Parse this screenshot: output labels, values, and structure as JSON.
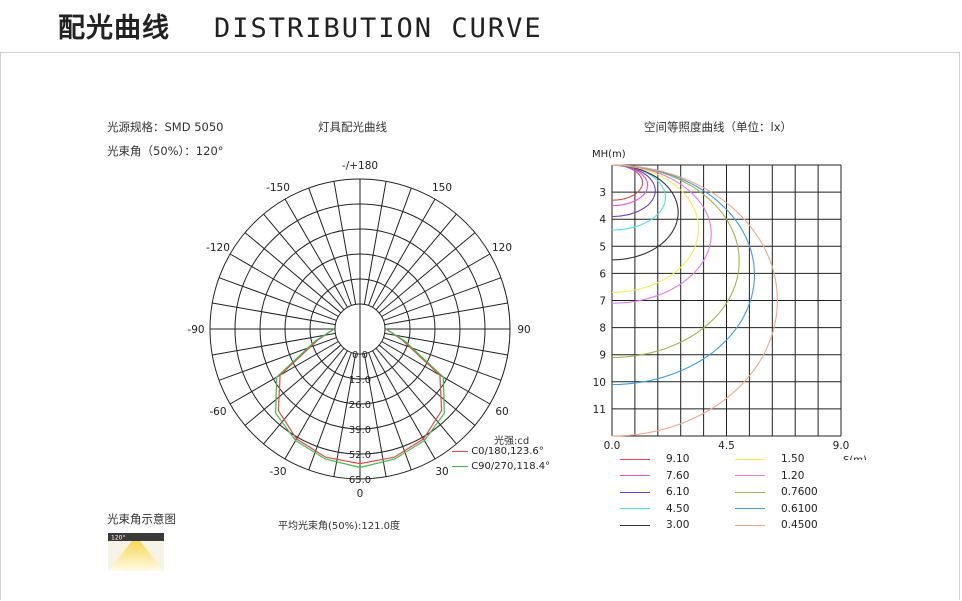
{
  "page": {
    "title_cn": "配光曲线",
    "title_en": "DISTRIBUTION CURVE"
  },
  "specs": {
    "source": "光源规格：SMD 5050",
    "beam": "光束角（50%）：120°"
  },
  "beam_diagram_label": "光束角示意图",
  "beam_icon_text": "120°",
  "colors": {
    "c0": "#e8474d",
    "c90": "#3dbb4a",
    "grid": "#222222"
  },
  "polar": {
    "title": "灯具配光曲线",
    "angle_labels": [
      "-/+180",
      "150",
      "120",
      "90",
      "60",
      "30",
      "0",
      "-30",
      "-60",
      "-90",
      "-120",
      "-150"
    ],
    "radial_labels": [
      "0.0",
      "13.0",
      "26.0",
      "39.0",
      "52.0",
      "65.0"
    ],
    "legend_title": "光强:cd",
    "legend": [
      "C0/180,123.6°",
      "C90/270,118.4°"
    ],
    "avg_beam": "平均光束角(50%):121.0度"
  },
  "iso": {
    "title": "空间等照度曲线（单位：lx）",
    "y_axis_label": "MH(m)",
    "x_axis_label": "S(m)",
    "y_ticks": [
      "3",
      "4",
      "5",
      "6",
      "7",
      "8",
      "9",
      "10",
      "11"
    ],
    "x_ticks": [
      "0.0",
      "4.5",
      "9.0"
    ],
    "legend": [
      {
        "label": "9.10",
        "color": "#e8474d"
      },
      {
        "label": "1.50",
        "color": "#f0f050"
      },
      {
        "label": "7.60",
        "color": "#ec4fd6"
      },
      {
        "label": "1.20",
        "color": "#e77ae6"
      },
      {
        "label": "6.10",
        "color": "#6a3fd6"
      },
      {
        "label": "0.7600",
        "color": "#a6b24e"
      },
      {
        "label": "4.50",
        "color": "#4fe0e0"
      },
      {
        "label": "0.6100",
        "color": "#3f9de0"
      },
      {
        "label": "3.00",
        "color": "#333333"
      },
      {
        "label": "0.4500",
        "color": "#f0a88a"
      }
    ]
  },
  "chart_data": [
    {
      "type": "polar",
      "title": "灯具配光曲线",
      "unit": "cd",
      "r_ticks": [
        0,
        13,
        26,
        39,
        52,
        65
      ],
      "r_max": 65,
      "angle_ticks_deg": [
        -180,
        -150,
        -120,
        -90,
        -60,
        -30,
        0,
        30,
        60,
        90,
        120,
        150,
        180
      ],
      "series": [
        {
          "name": "C0/180,123.6°",
          "angles": [
            -90,
            -75,
            -60,
            -45,
            -30,
            -15,
            0,
            15,
            30,
            45,
            60,
            75,
            90
          ],
          "values": [
            0.5,
            10,
            35,
            47,
            53,
            56,
            57,
            56,
            53,
            47,
            35,
            10,
            0.5
          ]
        },
        {
          "name": "C90/270,118.4°",
          "angles": [
            -90,
            -75,
            -60,
            -45,
            -30,
            -15,
            0,
            15,
            30,
            45,
            60,
            75,
            90
          ],
          "values": [
            0.5,
            11,
            37,
            49,
            54,
            57,
            59,
            57,
            54,
            49,
            37,
            11,
            0.5
          ]
        }
      ],
      "beam_angle_avg": 121.0
    },
    {
      "type": "line",
      "title": "空间等照度曲线（单位：lx）",
      "xlabel": "S(m)",
      "ylabel": "MH(m)",
      "xlim": [
        0,
        9.0
      ],
      "ylim": [
        2,
        12
      ],
      "series": [
        {
          "name": "9.10",
          "radius": 1.2,
          "ymin": 2,
          "ymax": 3.3
        },
        {
          "name": "7.60",
          "radius": 1.4,
          "ymin": 2,
          "ymax": 3.5
        },
        {
          "name": "6.10",
          "radius": 1.7,
          "ymin": 2,
          "ymax": 3.9
        },
        {
          "name": "4.50",
          "radius": 2.1,
          "ymin": 2,
          "ymax": 4.4
        },
        {
          "name": "3.00",
          "radius": 2.6,
          "ymin": 2,
          "ymax": 5.5
        },
        {
          "name": "1.50",
          "radius": 3.4,
          "ymin": 2,
          "ymax": 6.7
        },
        {
          "name": "1.20",
          "radius": 3.9,
          "ymin": 2,
          "ymax": 7.1
        },
        {
          "name": "0.7600",
          "radius": 5.0,
          "ymin": 2,
          "ymax": 9.1
        },
        {
          "name": "0.6100",
          "radius": 5.6,
          "ymin": 2,
          "ymax": 10.1
        },
        {
          "name": "0.4500",
          "radius": 6.5,
          "ymin": 2,
          "ymax": 12
        }
      ]
    }
  ]
}
